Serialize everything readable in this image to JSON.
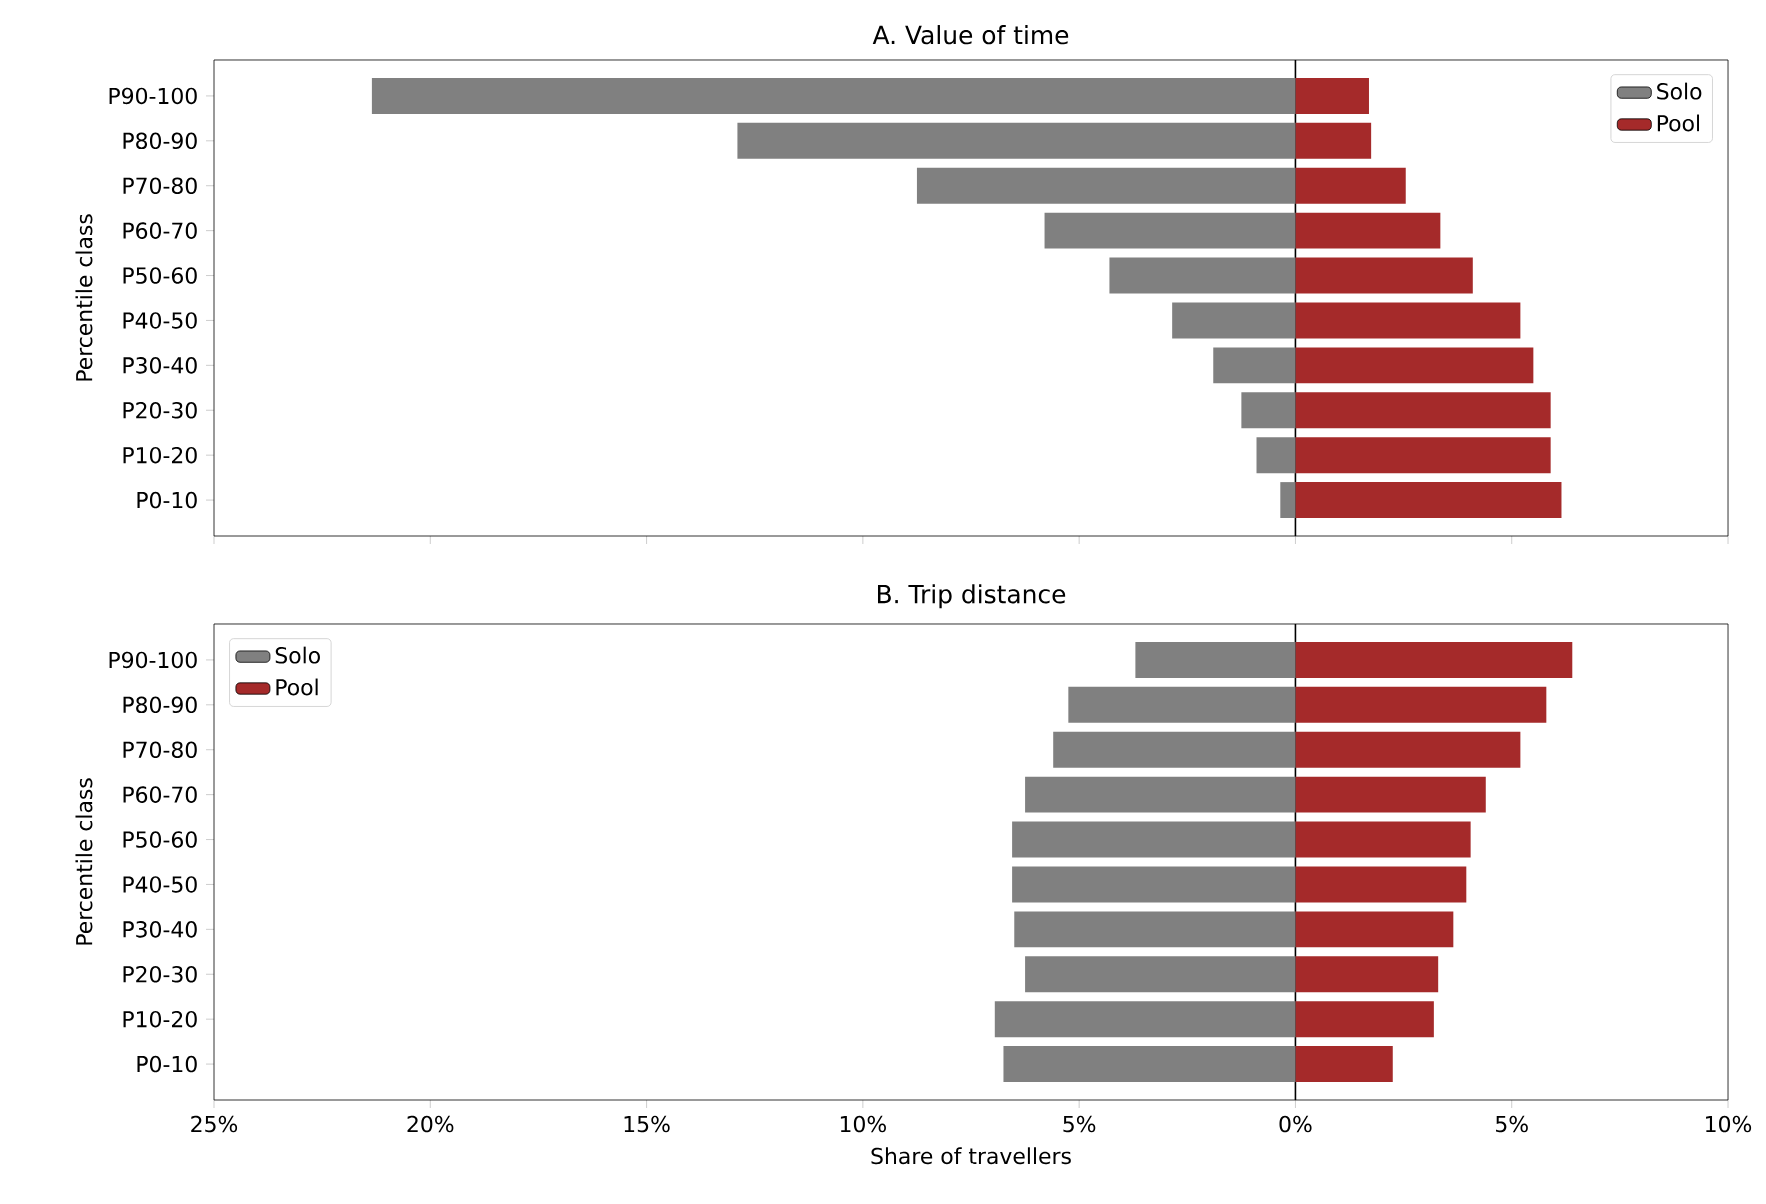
{
  "chart_data": [
    {
      "type": "bar",
      "orientation": "horizontal",
      "title": "A. Value of time",
      "ylabel": "Percentile class",
      "categories": [
        "P90-100",
        "P80-90",
        "P70-80",
        "P60-70",
        "P50-60",
        "P40-50",
        "P30-40",
        "P20-30",
        "P10-20",
        "P0-10"
      ],
      "series": [
        {
          "name": "Solo",
          "color": "#808080",
          "values": [
            -21.35,
            -12.9,
            -8.75,
            -5.8,
            -4.3,
            -2.85,
            -1.9,
            -1.25,
            -0.9,
            -0.35
          ]
        },
        {
          "name": "Pool",
          "color": "#a52a2a",
          "values": [
            1.7,
            1.75,
            2.55,
            3.35,
            4.1,
            5.2,
            5.5,
            5.9,
            5.9,
            6.15
          ]
        }
      ],
      "xlim": [
        -25,
        10
      ],
      "xticks": [
        {
          "value": -25,
          "label": null
        },
        {
          "value": -20,
          "label": null
        },
        {
          "value": -15,
          "label": null
        },
        {
          "value": -10,
          "label": null
        },
        {
          "value": -5,
          "label": null
        },
        {
          "value": 0,
          "label": null
        },
        {
          "value": 5,
          "label": null
        },
        {
          "value": 10,
          "label": null
        }
      ],
      "tick_labels": "y",
      "legend": "top right",
      "stacked": true,
      "ref_lines": [
        {
          "axis": "x",
          "value": 0,
          "color": "#000000"
        }
      ]
    },
    {
      "type": "bar",
      "orientation": "horizontal",
      "title": "B. Trip distance",
      "ylabel": "Percentile class",
      "xlabel": "Share of travellers",
      "categories": [
        "P90-100",
        "P80-90",
        "P70-80",
        "P60-70",
        "P50-60",
        "P40-50",
        "P30-40",
        "P20-30",
        "P10-20",
        "P0-10"
      ],
      "series": [
        {
          "name": "Solo",
          "color": "#808080",
          "values": [
            -3.7,
            -5.25,
            -5.6,
            -6.25,
            -6.55,
            -6.55,
            -6.5,
            -6.25,
            -6.95,
            -6.75
          ]
        },
        {
          "name": "Pool",
          "color": "#a52a2a",
          "values": [
            6.4,
            5.8,
            5.2,
            4.4,
            4.05,
            3.95,
            3.65,
            3.3,
            3.2,
            2.25
          ]
        }
      ],
      "xlim": [
        -25,
        10
      ],
      "xticks": [
        {
          "value": -25,
          "label": "25%"
        },
        {
          "value": -20,
          "label": "20%"
        },
        {
          "value": -15,
          "label": "15%"
        },
        {
          "value": -10,
          "label": "10%"
        },
        {
          "value": -5,
          "label": "5%"
        },
        {
          "value": 0,
          "label": "0%"
        },
        {
          "value": 5,
          "label": "5%"
        },
        {
          "value": 10,
          "label": "10%"
        }
      ],
      "legend": "top left",
      "stacked": true,
      "ref_lines": [
        {
          "axis": "x",
          "value": 0,
          "color": "#000000"
        }
      ]
    }
  ]
}
